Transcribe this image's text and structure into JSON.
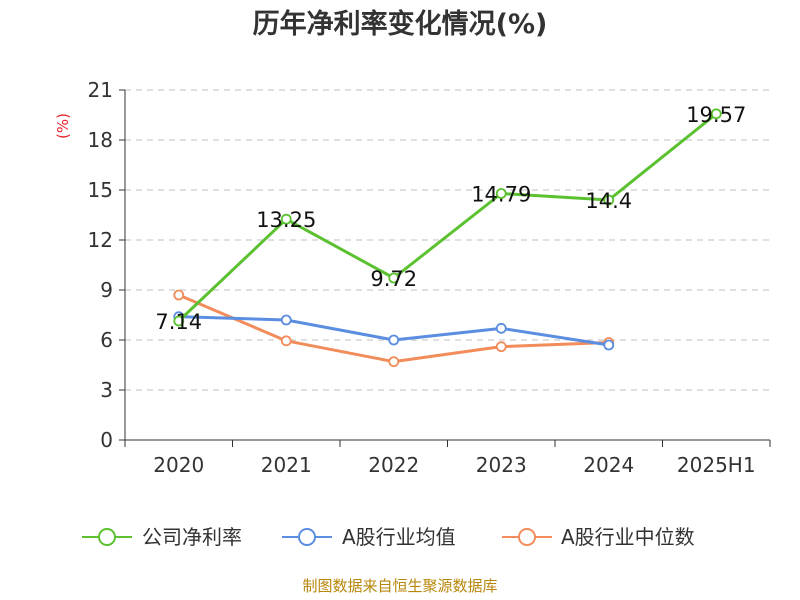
{
  "chart_data": {
    "type": "line",
    "title": "历年净利率变化情况(%)",
    "xlabel": "",
    "ylabel": "(%)",
    "ylim": [
      0,
      21
    ],
    "yticks": [
      0,
      3,
      6,
      9,
      12,
      15,
      18,
      21
    ],
    "grid": true,
    "legend_position": "bottom",
    "categories": [
      "2020",
      "2021",
      "2022",
      "2023",
      "2024",
      "2025H1"
    ],
    "series": [
      {
        "name": "公司净利率",
        "color": "#5cc130",
        "values": [
          7.14,
          13.25,
          9.72,
          14.79,
          14.4,
          19.57
        ],
        "labels": [
          "7.14",
          "13.25",
          "9.72",
          "14.79",
          "14.4",
          "19.57"
        ]
      },
      {
        "name": "A股行业均值",
        "color": "#5b8de0",
        "values": [
          7.4,
          7.2,
          6.0,
          6.7,
          5.7,
          null
        ]
      },
      {
        "name": "A股行业中位数",
        "color": "#f28c5b",
        "values": [
          8.7,
          5.95,
          4.7,
          5.6,
          5.85,
          null
        ]
      }
    ]
  },
  "footer": "制图数据来自恒生聚源数据库"
}
